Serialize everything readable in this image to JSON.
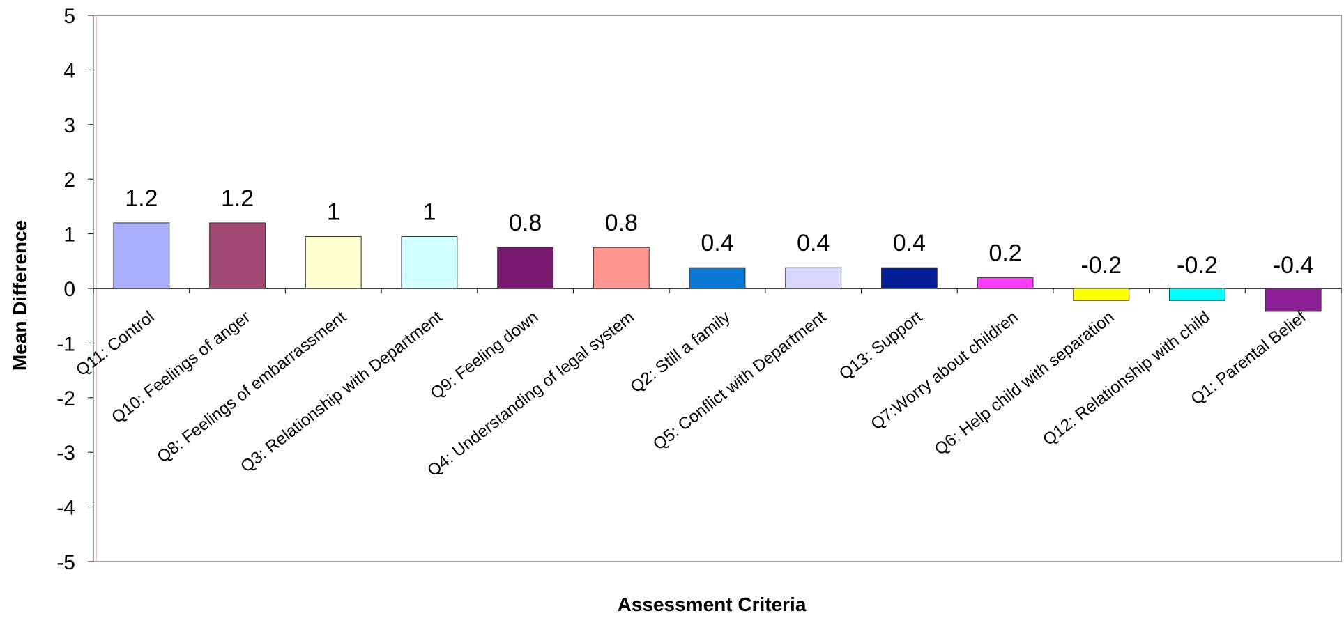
{
  "chart_data": {
    "type": "bar",
    "title": "",
    "xlabel": "Assessment Criteria",
    "ylabel": "Mean Difference",
    "ylim": [
      -5,
      5
    ],
    "yticks": [
      5,
      4,
      3,
      2,
      1,
      0,
      -1,
      -2,
      -3,
      -4,
      -5
    ],
    "grid": false,
    "legend": "none",
    "categories": [
      "Q11: Control",
      "Q10: Feelings of anger",
      "Q8: Feelings of embarrassment",
      "Q3: Relationship with Department",
      "Q9: Feeling down",
      "Q4: Understanding of legal system",
      "Q2: Still a family",
      "Q5: Conflict with Department",
      "Q13: Support",
      "Q7:Worry about children",
      "Q6: Help child with separation",
      "Q12: Relationship with child",
      "Q1: Parental Belief"
    ],
    "values": [
      1.2,
      1.2,
      0.95,
      0.95,
      0.75,
      0.75,
      0.38,
      0.38,
      0.38,
      0.2,
      -0.22,
      -0.22,
      -0.42
    ],
    "data_labels": [
      "1.2",
      "1.2",
      "1",
      "1",
      "0.8",
      "0.8",
      "0.4",
      "0.4",
      "0.4",
      "0.2",
      "-0.2",
      "-0.2",
      "-0.4"
    ],
    "colors": [
      "#A9AEFF",
      "#A34874",
      "#FFFFD2",
      "#D2FFFF",
      "#7B1A71",
      "#FF9690",
      "#0A78D4",
      "#D7D7FF",
      "#061E96",
      "#FF3CFF",
      "#FFFF00",
      "#00FFFF",
      "#8F2196"
    ]
  }
}
